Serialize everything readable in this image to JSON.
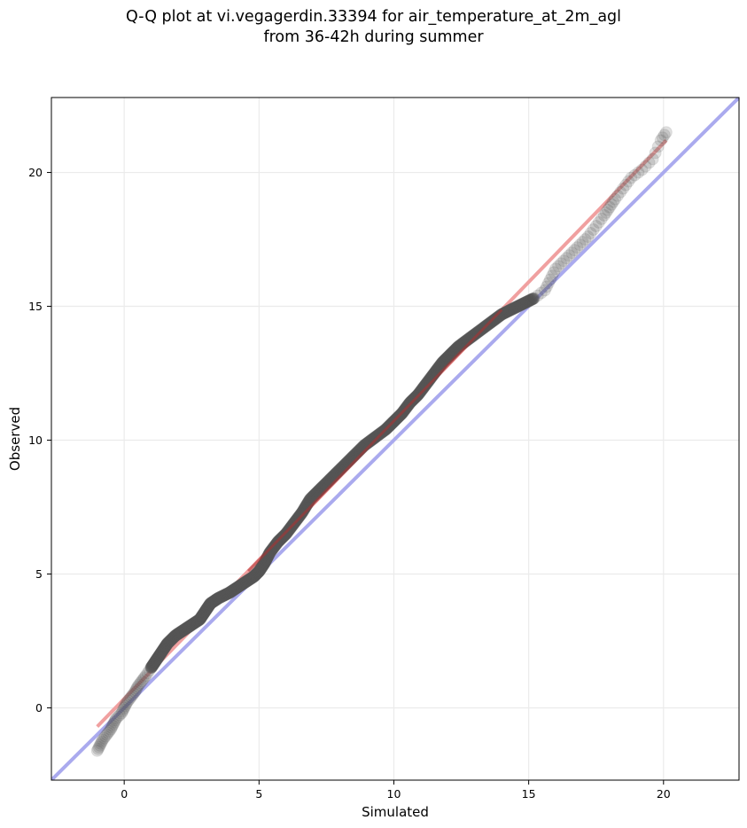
{
  "chart_data": {
    "type": "scatter",
    "title_lines": [
      "Q-Q plot at vi.vegagerdin.33394 for air_temperature_at_2m_agl",
      "from 36-42h during summer"
    ],
    "xlabel": "Simulated",
    "ylabel": "Observed",
    "xlim": [
      -2.7,
      22.8
    ],
    "ylim": [
      -2.7,
      22.8
    ],
    "xticks": [
      0,
      5,
      10,
      15,
      20
    ],
    "yticks": [
      0,
      5,
      10,
      15,
      20
    ],
    "grid": true,
    "colors": {
      "points": "#555555",
      "identity_line": "#aaaaee",
      "fit_line": "#f0a0a0",
      "fit_line_dense": "#b03030"
    },
    "identity_line": {
      "x": [
        -2.7,
        22.8
      ],
      "y": [
        -2.7,
        22.8
      ]
    },
    "fit_line": {
      "x": [
        -1.0,
        20.1
      ],
      "y": [
        -0.7,
        21.2
      ]
    },
    "quantile_points": [
      [
        -1.0,
        -1.6
      ],
      [
        -0.9,
        -1.4
      ],
      [
        -0.8,
        -1.2
      ],
      [
        -0.65,
        -1.0
      ],
      [
        -0.5,
        -0.8
      ],
      [
        -0.4,
        -0.6
      ],
      [
        -0.3,
        -0.4
      ],
      [
        -0.1,
        -0.2
      ],
      [
        0.0,
        0.0
      ],
      [
        0.1,
        0.2
      ],
      [
        0.25,
        0.4
      ],
      [
        0.4,
        0.6
      ],
      [
        0.5,
        0.8
      ],
      [
        0.65,
        1.0
      ],
      [
        0.8,
        1.2
      ],
      [
        1.0,
        1.5
      ],
      [
        1.2,
        1.8
      ],
      [
        1.4,
        2.1
      ],
      [
        1.6,
        2.4
      ],
      [
        1.9,
        2.7
      ],
      [
        2.2,
        2.9
      ],
      [
        2.5,
        3.1
      ],
      [
        2.8,
        3.3
      ],
      [
        3.0,
        3.6
      ],
      [
        3.2,
        3.9
      ],
      [
        3.5,
        4.1
      ],
      [
        3.9,
        4.3
      ],
      [
        4.2,
        4.5
      ],
      [
        4.5,
        4.7
      ],
      [
        4.8,
        4.9
      ],
      [
        5.0,
        5.1
      ],
      [
        5.2,
        5.4
      ],
      [
        5.4,
        5.8
      ],
      [
        5.7,
        6.2
      ],
      [
        6.0,
        6.5
      ],
      [
        6.3,
        6.9
      ],
      [
        6.6,
        7.3
      ],
      [
        6.9,
        7.8
      ],
      [
        7.3,
        8.2
      ],
      [
        7.7,
        8.6
      ],
      [
        8.1,
        9.0
      ],
      [
        8.5,
        9.4
      ],
      [
        8.9,
        9.8
      ],
      [
        9.3,
        10.1
      ],
      [
        9.7,
        10.4
      ],
      [
        10.0,
        10.7
      ],
      [
        10.3,
        11.0
      ],
      [
        10.6,
        11.4
      ],
      [
        10.9,
        11.7
      ],
      [
        11.2,
        12.1
      ],
      [
        11.5,
        12.5
      ],
      [
        11.8,
        12.9
      ],
      [
        12.1,
        13.2
      ],
      [
        12.4,
        13.5
      ],
      [
        12.8,
        13.8
      ],
      [
        13.2,
        14.1
      ],
      [
        13.6,
        14.4
      ],
      [
        14.0,
        14.7
      ],
      [
        14.4,
        14.9
      ],
      [
        14.8,
        15.1
      ],
      [
        15.2,
        15.3
      ],
      [
        15.6,
        15.6
      ],
      [
        15.8,
        16.0
      ],
      [
        16.0,
        16.4
      ],
      [
        16.3,
        16.7
      ],
      [
        16.6,
        17.0
      ],
      [
        16.9,
        17.3
      ],
      [
        17.2,
        17.6
      ],
      [
        17.5,
        18.0
      ],
      [
        17.8,
        18.4
      ],
      [
        18.0,
        18.7
      ],
      [
        18.2,
        19.0
      ],
      [
        18.5,
        19.4
      ],
      [
        18.8,
        19.8
      ],
      [
        19.2,
        20.1
      ],
      [
        19.6,
        20.5
      ],
      [
        19.9,
        21.2
      ],
      [
        20.1,
        21.5
      ]
    ]
  }
}
